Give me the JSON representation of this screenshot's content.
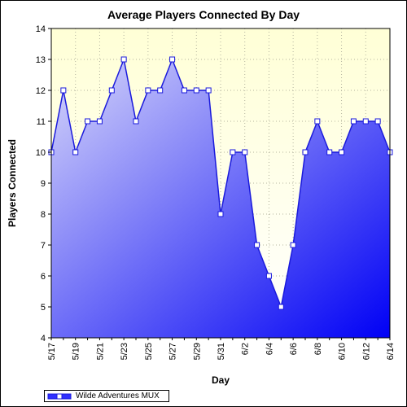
{
  "chart_data": {
    "type": "area",
    "title": "Average Players Connected By Day",
    "xlabel": "Day",
    "ylabel": "Players Connected",
    "ylim": [
      4,
      14
    ],
    "yticks": [
      4,
      5,
      6,
      7,
      8,
      9,
      10,
      11,
      12,
      13,
      14
    ],
    "grid": true,
    "legend_position": "bottom-left",
    "x_tick_labels": [
      "5/17",
      "5/19",
      "5/21",
      "5/23",
      "5/25",
      "5/27",
      "5/29",
      "5/31",
      "6/2",
      "6/4",
      "6/6",
      "6/8",
      "6/10",
      "6/12",
      "6/14"
    ],
    "x": [
      "5/17",
      "5/18",
      "5/19",
      "5/20",
      "5/21",
      "5/22",
      "5/23",
      "5/24",
      "5/25",
      "5/26",
      "5/27",
      "5/28",
      "5/29",
      "5/30",
      "5/31",
      "6/1",
      "6/2",
      "6/3",
      "6/4",
      "6/5",
      "6/6",
      "6/7",
      "6/8",
      "6/9",
      "6/10",
      "6/11",
      "6/12",
      "6/13",
      "6/14"
    ],
    "series": [
      {
        "name": "Wilde Adventures MUX",
        "values": [
          10,
          12,
          10,
          11,
          11,
          12,
          13,
          11,
          12,
          12,
          13,
          12,
          12,
          12,
          8,
          10,
          10,
          7,
          6,
          5,
          7,
          10,
          11,
          10,
          10,
          11,
          11,
          11,
          10
        ]
      }
    ],
    "colors": {
      "line": "#1a1adc",
      "fill_light": "#d8d8fa",
      "fill_dark": "#0000f5",
      "plot_background_top": "#ffffd6",
      "plot_background_bottom": "#ffffff",
      "grid": "#b4b4a0"
    }
  }
}
